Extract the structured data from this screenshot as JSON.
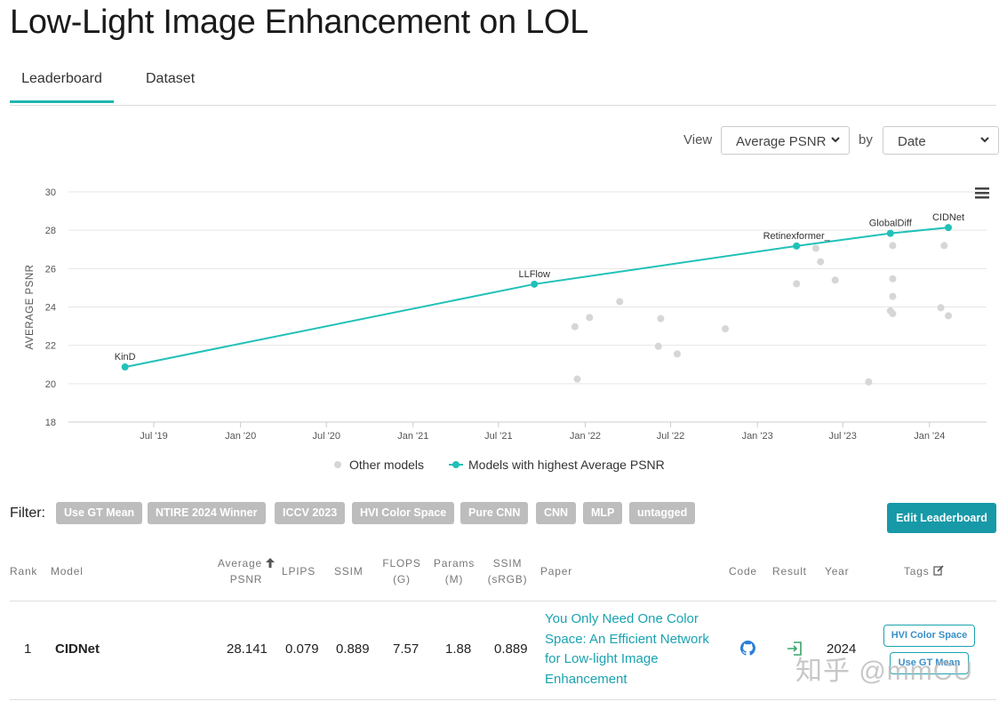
{
  "page": {
    "title": "Low-Light Image Enhancement on LOL",
    "tabs": [
      {
        "label": "Leaderboard"
      },
      {
        "label": "Dataset"
      }
    ]
  },
  "controls": {
    "view_label": "View",
    "view_value": "Average PSNR",
    "by_label": "by",
    "by_value": "Date"
  },
  "chart_data": {
    "type": "scatter",
    "ylabel": "AVERAGE PSNR",
    "xlabel": "",
    "ylim": [
      18,
      30
    ],
    "yticks": [
      18,
      20,
      22,
      24,
      26,
      28,
      30
    ],
    "xlim": [
      "2019-01-01",
      "2024-05-01"
    ],
    "xticks": [
      {
        "label": "Jul '19",
        "date": "2019-07-01"
      },
      {
        "label": "Jan '20",
        "date": "2020-01-01"
      },
      {
        "label": "Jul '20",
        "date": "2020-07-01"
      },
      {
        "label": "Jan '21",
        "date": "2021-01-01"
      },
      {
        "label": "Jul '21",
        "date": "2021-07-01"
      },
      {
        "label": "Jan '22",
        "date": "2022-01-01"
      },
      {
        "label": "Jul '22",
        "date": "2022-07-01"
      },
      {
        "label": "Jan '23",
        "date": "2023-01-01"
      },
      {
        "label": "Jul '23",
        "date": "2023-07-01"
      },
      {
        "label": "Jan '24",
        "date": "2024-01-01"
      }
    ],
    "series": [
      {
        "name": "Models with highest Average PSNR",
        "color": "#21c1b8",
        "points": [
          {
            "date": "2019-05-01",
            "value": 20.87,
            "label": "KinD"
          },
          {
            "date": "2021-09-15",
            "value": 25.19,
            "label": "LLFlow"
          },
          {
            "date": "2023-03-25",
            "value": 27.18,
            "label": "Retinexformer_"
          },
          {
            "date": "2023-10-10",
            "value": 27.84,
            "label": "GlobalDiff"
          },
          {
            "date": "2024-02-10",
            "value": 28.14,
            "label": "CIDNet"
          }
        ]
      },
      {
        "name": "Other models",
        "color": "#d6d6d6",
        "points": [
          {
            "date": "2021-12-10",
            "value": 22.97
          },
          {
            "date": "2021-12-15",
            "value": 20.24
          },
          {
            "date": "2022-01-10",
            "value": 23.45
          },
          {
            "date": "2022-03-15",
            "value": 24.28
          },
          {
            "date": "2022-06-05",
            "value": 21.95
          },
          {
            "date": "2022-06-10",
            "value": 23.39
          },
          {
            "date": "2022-07-15",
            "value": 21.55
          },
          {
            "date": "2022-10-25",
            "value": 22.86
          },
          {
            "date": "2023-03-25",
            "value": 25.21
          },
          {
            "date": "2023-05-05",
            "value": 27.06
          },
          {
            "date": "2023-05-15",
            "value": 26.36
          },
          {
            "date": "2023-06-15",
            "value": 25.4
          },
          {
            "date": "2023-08-25",
            "value": 20.09
          },
          {
            "date": "2023-10-10",
            "value": 23.8
          },
          {
            "date": "2023-10-15",
            "value": 27.2
          },
          {
            "date": "2023-10-15",
            "value": 25.47
          },
          {
            "date": "2023-10-15",
            "value": 24.55
          },
          {
            "date": "2023-10-15",
            "value": 23.65
          },
          {
            "date": "2024-01-25",
            "value": 23.96
          },
          {
            "date": "2024-02-01",
            "value": 27.2
          },
          {
            "date": "2024-02-10",
            "value": 23.54
          }
        ]
      }
    ],
    "legend": [
      {
        "label": "Other models",
        "color": "#d6d6d6"
      },
      {
        "label": "Models with highest Average PSNR",
        "color": "#21c1b8"
      }
    ],
    "grid": true,
    "legend_position": "bottom"
  },
  "filter": {
    "label": "Filter:",
    "chips": [
      "Use GT Mean",
      "NTIRE 2024 Winner",
      "ICCV 2023",
      "HVI Color Space",
      "Pure CNN",
      "CNN",
      "MLP",
      "untagged"
    ],
    "edit_button": "Edit Leaderboard"
  },
  "table": {
    "headers": {
      "rank": "Rank",
      "model": "Model",
      "psnr_line1": "Average",
      "psnr_line2": "PSNR",
      "lpips": "LPIPS",
      "ssim": "SSIM",
      "flops_line1": "FLOPS",
      "flops_line2": "(G)",
      "params_line1": "Params",
      "params_line2": "(M)",
      "ssim_srgb_line1": "SSIM",
      "ssim_srgb_line2": "(sRGB)",
      "paper": "Paper",
      "code": "Code",
      "result": "Result",
      "year": "Year",
      "tags": "Tags"
    },
    "rows": [
      {
        "rank": "1",
        "model": "CIDNet",
        "psnr": "28.141",
        "lpips": "0.079",
        "ssim": "0.889",
        "flops": "7.57",
        "params": "1.88",
        "ssim_srgb": "0.889",
        "paper_lines": [
          "You Only Need One Color",
          "Space: An Efficient Network",
          "for Low-light Image",
          "Enhancement"
        ],
        "year": "2024",
        "tags": [
          "HVI Color Space",
          "Use GT Mean"
        ]
      }
    ]
  },
  "watermark": "知乎 @mmCU",
  "icons": {
    "menu": "hamburger-icon",
    "code": "github-icon",
    "result": "result-link-icon",
    "sort": "sort-up-icon",
    "edit": "edit-icon"
  }
}
